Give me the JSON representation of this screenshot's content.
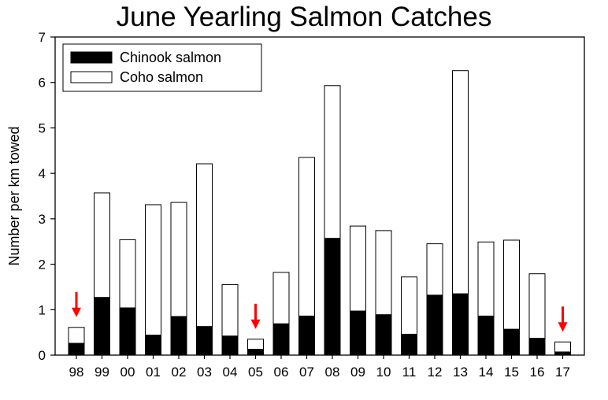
{
  "chart_data": {
    "type": "bar",
    "stacked": true,
    "title": "June Yearling Salmon Catches",
    "xlabel": "",
    "ylabel": "Number per km towed",
    "ylim": [
      0,
      7
    ],
    "yticks": [
      "0",
      "1",
      "2",
      "3",
      "4",
      "5",
      "6",
      "7"
    ],
    "categories": [
      "98",
      "99",
      "00",
      "01",
      "02",
      "03",
      "04",
      "05",
      "06",
      "07",
      "08",
      "09",
      "10",
      "11",
      "12",
      "13",
      "14",
      "15",
      "16",
      "17"
    ],
    "series": [
      {
        "name": "Chinook salmon",
        "color": "#000000",
        "values": [
          0.26,
          1.27,
          1.04,
          0.44,
          0.85,
          0.63,
          0.42,
          0.13,
          0.69,
          0.86,
          2.57,
          0.97,
          0.89,
          0.46,
          1.32,
          1.35,
          0.86,
          0.57,
          0.37,
          0.07
        ]
      },
      {
        "name": "Coho salmon",
        "color": "#ffffff",
        "values": [
          0.35,
          2.3,
          1.5,
          2.87,
          2.51,
          3.58,
          1.13,
          0.22,
          1.13,
          3.49,
          3.36,
          1.87,
          1.85,
          1.26,
          1.13,
          4.91,
          1.63,
          1.96,
          1.42,
          0.22
        ]
      }
    ],
    "legend_position": "top-left",
    "grid": false,
    "annotations": [
      {
        "type": "arrow",
        "category": "98",
        "color": "#ff0000"
      },
      {
        "type": "arrow",
        "category": "05",
        "color": "#ff0000"
      },
      {
        "type": "arrow",
        "category": "17",
        "color": "#ff0000"
      }
    ]
  }
}
